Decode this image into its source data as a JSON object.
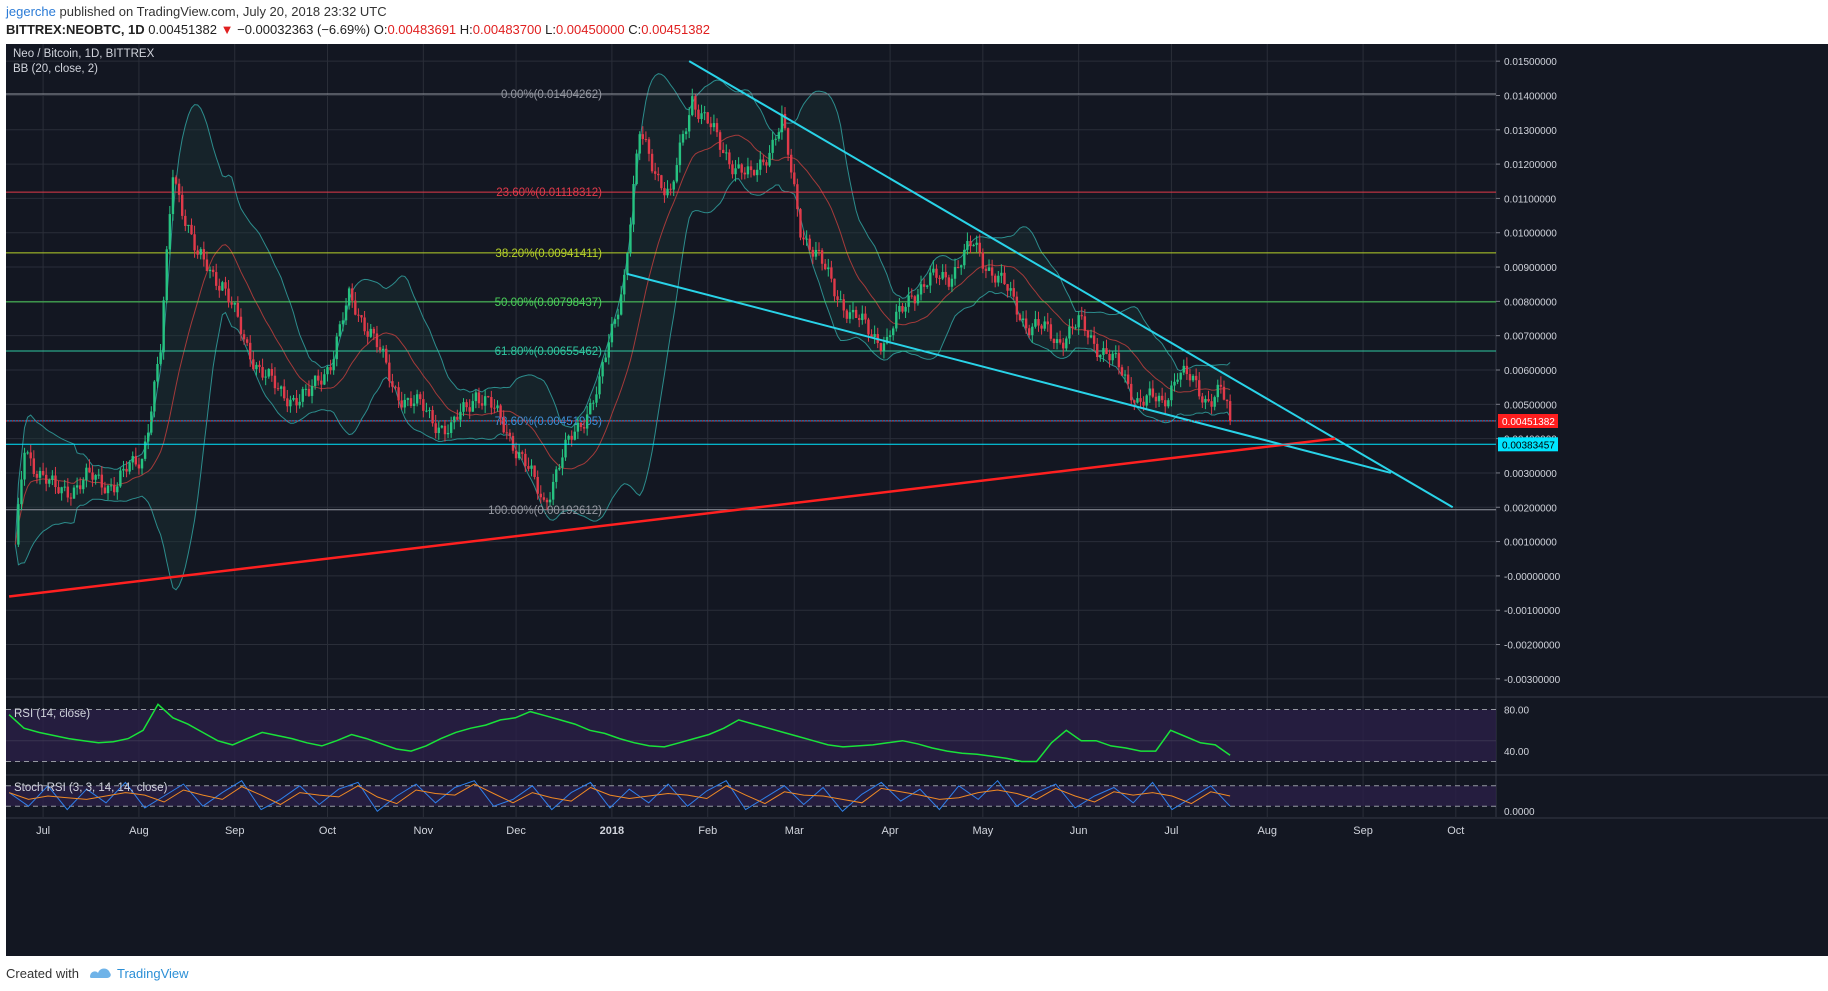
{
  "header": {
    "user": "jegerche",
    "published": "published on TradingView.com, July 20, 2018 23:32 UTC",
    "symbol": "BITTREX:NEOBTC, 1D",
    "last": "0.00451382",
    "change_arrow": "▼",
    "change": "−0.00032363 (−6.69%)",
    "o_label": "O:",
    "o": "0.00483691",
    "h_label": "H:",
    "h": "0.00483700",
    "l_label": "L:",
    "l": "0.00450000",
    "c_label": "C:",
    "c": "0.00451382"
  },
  "legend": {
    "title": "Neo / Bitcoin, 1D, BITTREX",
    "indicator": "BB (20, close, 2)"
  },
  "footer": {
    "created_with": "Created with",
    "brand": "TradingView"
  },
  "colors": {
    "background": "#131722",
    "bull": "#26c281",
    "bear": "#e03a4a",
    "rsi": "#19e23a",
    "trendline_cyan": "#29d3e8",
    "trendline_red": "#ff2020",
    "bb_band": "#2c8c8c"
  },
  "chart_data": [
    {
      "type": "candlestick",
      "title": "Neo / Bitcoin, 1D, BITTREX",
      "ylim": [
        -0.0035,
        0.0155
      ],
      "y_ticks": [
        "0.01500000",
        "0.01400000",
        "0.01300000",
        "0.01200000",
        "0.01100000",
        "0.01000000",
        "0.00900000",
        "0.00800000",
        "0.00700000",
        "0.00600000",
        "0.00500000",
        "0.00400000",
        "0.00300000",
        "0.00200000",
        "0.00100000",
        "-0.00000000",
        "-0.00100000",
        "-0.00200000",
        "-0.00300000"
      ],
      "x_labels": [
        "Jul",
        "Aug",
        "Sep",
        "Oct",
        "Nov",
        "Dec",
        "2018",
        "Feb",
        "Mar",
        "Apr",
        "May",
        "Jun",
        "Jul",
        "Aug",
        "Sep",
        "Oct"
      ],
      "price_labels": [
        {
          "value": "0.00451382",
          "color": "#ff1e1e"
        },
        {
          "value": "0.00383457",
          "color": "#00e5ff"
        }
      ],
      "fib_levels": [
        {
          "label": "0.00%(0.01404262)",
          "value": 0.01404262,
          "color": "#9598a1"
        },
        {
          "label": "23.60%(0.01118312)",
          "value": 0.01118312,
          "color": "#e03a4a"
        },
        {
          "label": "38.20%(0.00941411)",
          "value": 0.00941411,
          "color": "#b6d12a"
        },
        {
          "label": "50.00%(0.00798437)",
          "value": 0.00798437,
          "color": "#4bd05a"
        },
        {
          "label": "61.80%(0.00655462)",
          "value": 0.00655462,
          "color": "#2fc7a0"
        },
        {
          "label": "78.60%(0.00451905)",
          "value": 0.00451905,
          "color": "#3d8fd6"
        },
        {
          "label": "100.00%(0.00192612)",
          "value": 0.00192612,
          "color": "#9598a1"
        }
      ],
      "horizontal_lines": [
        0.00383457
      ],
      "close_series": [
        {
          "date": "2017-06-22",
          "close": 0.0007
        },
        {
          "date": "2017-06-25",
          "close": 0.0037
        },
        {
          "date": "2017-07-05",
          "close": 0.0024
        },
        {
          "date": "2017-07-15",
          "close": 0.0028
        },
        {
          "date": "2017-07-25",
          "close": 0.0027
        },
        {
          "date": "2017-08-02",
          "close": 0.0035
        },
        {
          "date": "2017-08-08",
          "close": 0.0065
        },
        {
          "date": "2017-08-12",
          "close": 0.0118
        },
        {
          "date": "2017-08-20",
          "close": 0.0092
        },
        {
          "date": "2017-08-28",
          "close": 0.0086
        },
        {
          "date": "2017-09-04",
          "close": 0.0068
        },
        {
          "date": "2017-09-15",
          "close": 0.0053
        },
        {
          "date": "2017-09-25",
          "close": 0.0052
        },
        {
          "date": "2017-10-02",
          "close": 0.0063
        },
        {
          "date": "2017-10-08",
          "close": 0.008
        },
        {
          "date": "2017-10-15",
          "close": 0.0072
        },
        {
          "date": "2017-10-22",
          "close": 0.0055
        },
        {
          "date": "2017-11-01",
          "close": 0.0048
        },
        {
          "date": "2017-11-10",
          "close": 0.0042
        },
        {
          "date": "2017-11-18",
          "close": 0.0054
        },
        {
          "date": "2017-11-28",
          "close": 0.0043
        },
        {
          "date": "2017-12-05",
          "close": 0.003
        },
        {
          "date": "2017-12-10",
          "close": 0.0022
        },
        {
          "date": "2017-12-20",
          "close": 0.0042
        },
        {
          "date": "2017-12-28",
          "close": 0.0055
        },
        {
          "date": "2018-01-05",
          "close": 0.0088
        },
        {
          "date": "2018-01-10",
          "close": 0.0128
        },
        {
          "date": "2018-01-20",
          "close": 0.011
        },
        {
          "date": "2018-01-27",
          "close": 0.014
        },
        {
          "date": "2018-02-05",
          "close": 0.0125
        },
        {
          "date": "2018-02-15",
          "close": 0.0115
        },
        {
          "date": "2018-02-25",
          "close": 0.0132
        },
        {
          "date": "2018-03-03",
          "close": 0.0102
        },
        {
          "date": "2018-03-10",
          "close": 0.009
        },
        {
          "date": "2018-03-20",
          "close": 0.0075
        },
        {
          "date": "2018-03-31",
          "close": 0.0068
        },
        {
          "date": "2018-04-08",
          "close": 0.0083
        },
        {
          "date": "2018-04-20",
          "close": 0.0088
        },
        {
          "date": "2018-04-28",
          "close": 0.0096
        },
        {
          "date": "2018-05-05",
          "close": 0.0088
        },
        {
          "date": "2018-05-15",
          "close": 0.0074
        },
        {
          "date": "2018-05-25",
          "close": 0.0069
        },
        {
          "date": "2018-06-01",
          "close": 0.0073
        },
        {
          "date": "2018-06-10",
          "close": 0.0065
        },
        {
          "date": "2018-06-20",
          "close": 0.0052
        },
        {
          "date": "2018-06-28",
          "close": 0.005
        },
        {
          "date": "2018-07-03",
          "close": 0.006
        },
        {
          "date": "2018-07-12",
          "close": 0.0052
        },
        {
          "date": "2018-07-17",
          "close": 0.0054
        },
        {
          "date": "2018-07-20",
          "close": 0.00451382
        }
      ],
      "trend_lines": [
        {
          "color": "cyan",
          "from": {
            "date": "2018-01-26",
            "value": 0.015
          },
          "to": {
            "date": "2018-09-30",
            "value": 0.002
          }
        },
        {
          "color": "cyan",
          "from": {
            "date": "2018-01-06",
            "value": 0.0088
          },
          "to": {
            "date": "2018-09-10",
            "value": 0.003
          }
        },
        {
          "color": "red",
          "from": {
            "date": "2017-06-20",
            "value": -0.0006
          },
          "to": {
            "date": "2018-08-23",
            "value": 0.004
          }
        }
      ]
    },
    {
      "type": "line",
      "title": "RSI (14, close)",
      "ylim": [
        18,
        92
      ],
      "y_ticks": [
        "80.00",
        "40.00"
      ],
      "bands": [
        80,
        30
      ],
      "series": [
        {
          "values": [
            75,
            62,
            58,
            55,
            52,
            50,
            48,
            49,
            52,
            60,
            85,
            72,
            66,
            58,
            50,
            46,
            52,
            58,
            55,
            52,
            48,
            45,
            50,
            56,
            52,
            47,
            42,
            40,
            45,
            52,
            58,
            62,
            65,
            70,
            72,
            78,
            74,
            70,
            66,
            60,
            57,
            52,
            48,
            45,
            44,
            48,
            52,
            56,
            62,
            70,
            66,
            62,
            58,
            54,
            50,
            46,
            44,
            45,
            46,
            48,
            50,
            47,
            43,
            40,
            38,
            37,
            35,
            33,
            30,
            30,
            48,
            60,
            50,
            50,
            45,
            43,
            40,
            40,
            60,
            54,
            48,
            46,
            36
          ]
        }
      ]
    },
    {
      "type": "line",
      "title": "Stoch RSI (3, 3, 14, 14, close)",
      "ylim": [
        0,
        100
      ],
      "y_ticks": [
        "0.0000"
      ],
      "series": [
        {
          "values": [
            60,
            20,
            80,
            10,
            70,
            30,
            90,
            15,
            50,
            85,
            20,
            60,
            95,
            10,
            40,
            80,
            25,
            70,
            90,
            5,
            50,
            85,
            30,
            75,
            95,
            20,
            40,
            80,
            10,
            60,
            90,
            15,
            70,
            30,
            85,
            20,
            65,
            95,
            10,
            45,
            80,
            25,
            75,
            5,
            55,
            90,
            35,
            70,
            10,
            80,
            40,
            95,
            20,
            60,
            85,
            15,
            50,
            75,
            30,
            90,
            10,
            45,
            80,
            20
          ]
        }
      ]
    }
  ]
}
